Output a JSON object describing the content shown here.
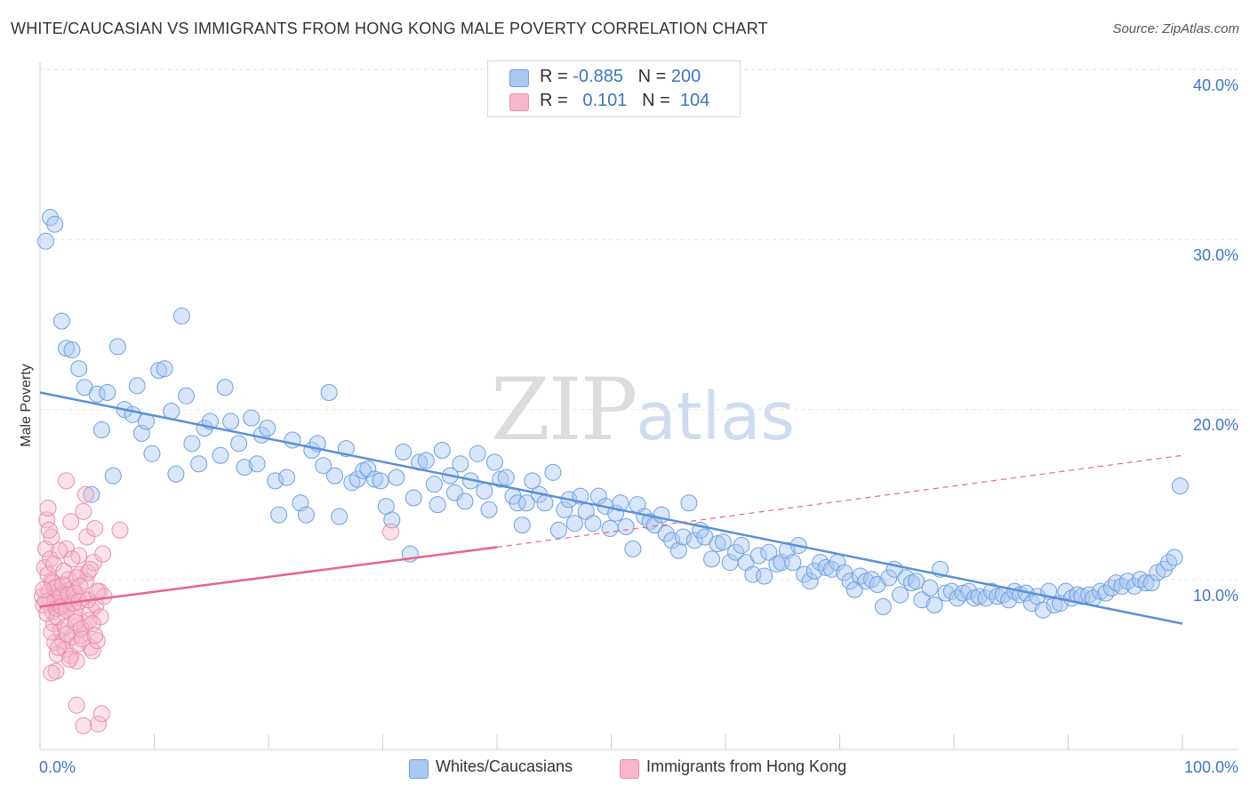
{
  "title": "WHITE/CAUCASIAN VS IMMIGRANTS FROM HONG KONG MALE POVERTY CORRELATION CHART",
  "source": "Source: ZipAtlas.com",
  "watermark": {
    "zip": "ZIP",
    "atlas": "atlas"
  },
  "legend": {
    "rows": [
      {
        "r_label": "R =",
        "r_value": "-0.885",
        "n_label": "N =",
        "n_value": "200",
        "color": "#a9c8f2"
      },
      {
        "r_label": "R =",
        "r_value": "0.101",
        "n_label": "N =",
        "n_value": "104",
        "color": "#f6b7ca"
      }
    ]
  },
  "bottom_legend": [
    {
      "label": "Whites/Caucasians",
      "color": "#a9c8f2"
    },
    {
      "label": "Immigrants from Hong Kong",
      "color": "#f6b7ca"
    }
  ],
  "chart_data": {
    "type": "scatter",
    "title": "WHITE/CAUCASIAN VS IMMIGRANTS FROM HONG KONG MALE POVERTY CORRELATION CHART",
    "ylabel": "Male Poverty",
    "xlabel": "",
    "x_tick_labels": [
      "0.0%",
      "100.0%"
    ],
    "y_tick_labels": [
      "10.0%",
      "20.0%",
      "30.0%",
      "40.0%"
    ],
    "y_ticks": [
      10,
      20,
      30,
      40
    ],
    "xlim": [
      0,
      100
    ],
    "ylim": [
      0,
      41
    ],
    "grid": true,
    "legend_placement": "top-center",
    "series": [
      {
        "name": "Whites/Caucasians",
        "color": "#5b8fd9",
        "fill": "#a9c8f2",
        "trend": {
          "x": [
            0,
            100
          ],
          "y": [
            21.0,
            7.4
          ],
          "dashed_extension": false
        },
        "points": [
          [
            0.5,
            29.9
          ],
          [
            0.9,
            31.3
          ],
          [
            1.3,
            30.9
          ],
          [
            1.9,
            25.2
          ],
          [
            2.3,
            23.6
          ],
          [
            2.8,
            23.5
          ],
          [
            3.4,
            22.4
          ],
          [
            3.9,
            21.3
          ],
          [
            4.5,
            15.0
          ],
          [
            5.0,
            20.9
          ],
          [
            5.4,
            18.8
          ],
          [
            5.9,
            21.0
          ],
          [
            6.4,
            16.1
          ],
          [
            6.8,
            23.7
          ],
          [
            7.4,
            20.0
          ],
          [
            8.1,
            19.7
          ],
          [
            8.5,
            21.4
          ],
          [
            8.9,
            18.6
          ],
          [
            9.3,
            19.3
          ],
          [
            9.8,
            17.4
          ],
          [
            10.4,
            22.3
          ],
          [
            10.9,
            22.4
          ],
          [
            11.5,
            19.9
          ],
          [
            11.9,
            16.2
          ],
          [
            12.4,
            25.5
          ],
          [
            12.8,
            20.8
          ],
          [
            13.3,
            18.0
          ],
          [
            13.9,
            16.8
          ],
          [
            14.4,
            18.9
          ],
          [
            14.9,
            19.3
          ],
          [
            15.8,
            17.3
          ],
          [
            16.2,
            21.3
          ],
          [
            16.7,
            19.3
          ],
          [
            17.4,
            18.0
          ],
          [
            17.9,
            16.6
          ],
          [
            18.5,
            19.5
          ],
          [
            19.0,
            16.8
          ],
          [
            19.4,
            18.5
          ],
          [
            19.9,
            18.9
          ],
          [
            20.6,
            15.8
          ],
          [
            20.9,
            13.8
          ],
          [
            21.6,
            16.0
          ],
          [
            22.1,
            18.2
          ],
          [
            22.8,
            14.5
          ],
          [
            23.3,
            13.8
          ],
          [
            23.8,
            17.6
          ],
          [
            24.3,
            18.0
          ],
          [
            24.8,
            16.7
          ],
          [
            25.3,
            21.0
          ],
          [
            25.8,
            16.1
          ],
          [
            26.2,
            13.7
          ],
          [
            26.8,
            17.7
          ],
          [
            27.3,
            15.7
          ],
          [
            27.8,
            15.9
          ],
          [
            28.3,
            16.4
          ],
          [
            28.7,
            16.5
          ],
          [
            29.3,
            15.9
          ],
          [
            29.8,
            15.8
          ],
          [
            30.3,
            14.3
          ],
          [
            30.8,
            13.5
          ],
          [
            31.2,
            16.0
          ],
          [
            31.8,
            17.5
          ],
          [
            32.4,
            11.5
          ],
          [
            32.7,
            14.8
          ],
          [
            33.2,
            16.9
          ],
          [
            33.8,
            17.0
          ],
          [
            34.5,
            15.6
          ],
          [
            34.8,
            14.4
          ],
          [
            35.2,
            17.6
          ],
          [
            35.9,
            16.1
          ],
          [
            36.3,
            15.1
          ],
          [
            36.8,
            16.8
          ],
          [
            37.2,
            14.6
          ],
          [
            37.7,
            15.8
          ],
          [
            38.3,
            17.4
          ],
          [
            38.9,
            15.2
          ],
          [
            39.3,
            14.1
          ],
          [
            39.8,
            16.9
          ],
          [
            40.3,
            15.9
          ],
          [
            40.8,
            16.0
          ],
          [
            41.4,
            14.9
          ],
          [
            41.8,
            14.5
          ],
          [
            42.2,
            13.2
          ],
          [
            42.6,
            14.5
          ],
          [
            43.1,
            15.8
          ],
          [
            43.7,
            15.0
          ],
          [
            44.2,
            14.5
          ],
          [
            44.9,
            16.3
          ],
          [
            45.4,
            12.9
          ],
          [
            45.9,
            14.1
          ],
          [
            46.3,
            14.7
          ],
          [
            46.8,
            13.3
          ],
          [
            47.3,
            14.9
          ],
          [
            47.8,
            14.0
          ],
          [
            48.4,
            13.3
          ],
          [
            48.9,
            14.9
          ],
          [
            49.5,
            14.3
          ],
          [
            49.9,
            13.0
          ],
          [
            50.4,
            13.9
          ],
          [
            50.8,
            14.5
          ],
          [
            51.3,
            13.1
          ],
          [
            51.9,
            11.8
          ],
          [
            52.3,
            14.4
          ],
          [
            52.9,
            13.7
          ],
          [
            53.4,
            13.4
          ],
          [
            53.8,
            13.2
          ],
          [
            54.4,
            13.8
          ],
          [
            54.8,
            12.7
          ],
          [
            55.3,
            12.3
          ],
          [
            55.9,
            11.7
          ],
          [
            56.3,
            12.5
          ],
          [
            56.8,
            14.5
          ],
          [
            57.3,
            12.3
          ],
          [
            57.8,
            12.9
          ],
          [
            58.2,
            12.5
          ],
          [
            58.8,
            11.2
          ],
          [
            59.3,
            12.1
          ],
          [
            59.8,
            12.2
          ],
          [
            60.4,
            11.0
          ],
          [
            60.9,
            11.6
          ],
          [
            61.4,
            12.0
          ],
          [
            61.8,
            11.0
          ],
          [
            62.4,
            10.3
          ],
          [
            62.9,
            11.4
          ],
          [
            63.4,
            10.2
          ],
          [
            63.8,
            11.6
          ],
          [
            64.5,
            10.9
          ],
          [
            64.9,
            11.0
          ],
          [
            65.4,
            11.7
          ],
          [
            65.9,
            11.0
          ],
          [
            66.4,
            12.0
          ],
          [
            66.9,
            10.3
          ],
          [
            67.4,
            9.9
          ],
          [
            67.8,
            10.5
          ],
          [
            68.3,
            11.0
          ],
          [
            68.8,
            10.7
          ],
          [
            69.3,
            10.6
          ],
          [
            69.8,
            11.0
          ],
          [
            70.4,
            10.4
          ],
          [
            70.9,
            9.9
          ],
          [
            71.3,
            9.4
          ],
          [
            71.8,
            10.2
          ],
          [
            72.3,
            9.9
          ],
          [
            72.8,
            10.0
          ],
          [
            73.3,
            9.7
          ],
          [
            73.8,
            8.4
          ],
          [
            74.3,
            10.1
          ],
          [
            74.8,
            10.6
          ],
          [
            75.3,
            9.1
          ],
          [
            75.8,
            10.1
          ],
          [
            76.3,
            9.8
          ],
          [
            76.7,
            9.9
          ],
          [
            77.2,
            8.8
          ],
          [
            77.9,
            9.5
          ],
          [
            78.3,
            8.5
          ],
          [
            78.8,
            10.6
          ],
          [
            79.3,
            9.2
          ],
          [
            79.8,
            9.3
          ],
          [
            80.3,
            8.9
          ],
          [
            80.8,
            9.2
          ],
          [
            81.3,
            9.3
          ],
          [
            81.8,
            8.9
          ],
          [
            82.2,
            9.0
          ],
          [
            82.8,
            8.9
          ],
          [
            83.3,
            9.3
          ],
          [
            83.8,
            9.0
          ],
          [
            84.3,
            9.1
          ],
          [
            84.8,
            8.8
          ],
          [
            85.3,
            9.3
          ],
          [
            85.8,
            9.1
          ],
          [
            86.3,
            9.2
          ],
          [
            86.8,
            8.6
          ],
          [
            87.3,
            9.0
          ],
          [
            87.8,
            8.2
          ],
          [
            88.3,
            9.3
          ],
          [
            88.8,
            8.5
          ],
          [
            89.3,
            8.6
          ],
          [
            89.8,
            9.3
          ],
          [
            90.3,
            8.9
          ],
          [
            90.8,
            9.1
          ],
          [
            91.2,
            9.0
          ],
          [
            91.8,
            9.1
          ],
          [
            92.2,
            8.9
          ],
          [
            92.8,
            9.3
          ],
          [
            93.3,
            9.2
          ],
          [
            93.8,
            9.5
          ],
          [
            94.2,
            9.8
          ],
          [
            94.7,
            9.6
          ],
          [
            95.2,
            9.9
          ],
          [
            95.8,
            9.6
          ],
          [
            96.3,
            10.0
          ],
          [
            96.8,
            9.8
          ],
          [
            97.3,
            9.8
          ],
          [
            97.8,
            10.4
          ],
          [
            98.4,
            10.6
          ],
          [
            98.8,
            11.0
          ],
          [
            99.3,
            11.3
          ],
          [
            99.8,
            15.5
          ]
        ]
      },
      {
        "name": "Immigrants from Hong Kong",
        "color": "#e8638d",
        "fill": "#f6b7ca",
        "trend": {
          "x": [
            0,
            40
          ],
          "y": [
            8.4,
            11.9
          ],
          "dashed_extension_to": [
            100,
            17.3
          ]
        },
        "points": [
          [
            0.2,
            9.0
          ],
          [
            0.3,
            8.5
          ],
          [
            0.4,
            10.7
          ],
          [
            0.5,
            11.8
          ],
          [
            0.6,
            13.5
          ],
          [
            0.7,
            14.2
          ],
          [
            0.8,
            9.3
          ],
          [
            0.9,
            8.8
          ],
          [
            1.0,
            12.5
          ],
          [
            1.0,
            9.9
          ],
          [
            1.1,
            8.1
          ],
          [
            1.2,
            7.4
          ],
          [
            1.3,
            8.7
          ],
          [
            1.3,
            6.3
          ],
          [
            1.4,
            4.6
          ],
          [
            1.5,
            5.6
          ],
          [
            1.5,
            9.6
          ],
          [
            1.6,
            8.3
          ],
          [
            1.7,
            9.3
          ],
          [
            1.8,
            7.0
          ],
          [
            1.9,
            9.1
          ],
          [
            2.0,
            6.4
          ],
          [
            2.1,
            8.6
          ],
          [
            2.2,
            5.9
          ],
          [
            2.3,
            15.8
          ],
          [
            2.3,
            11.8
          ],
          [
            2.4,
            9.4
          ],
          [
            2.5,
            10.0
          ],
          [
            2.6,
            8.7
          ],
          [
            2.7,
            5.5
          ],
          [
            2.8,
            6.6
          ],
          [
            2.9,
            9.5
          ],
          [
            3.0,
            8.1
          ],
          [
            3.1,
            7.7
          ],
          [
            3.2,
            5.2
          ],
          [
            3.2,
            2.6
          ],
          [
            3.3,
            9.0
          ],
          [
            3.4,
            11.4
          ],
          [
            3.5,
            10.3
          ],
          [
            3.6,
            6.7
          ],
          [
            3.7,
            8.9
          ],
          [
            3.8,
            14.0
          ],
          [
            3.9,
            7.2
          ],
          [
            4.0,
            9.9
          ],
          [
            4.1,
            12.5
          ],
          [
            4.2,
            10.4
          ],
          [
            4.3,
            7.6
          ],
          [
            4.4,
            6.0
          ],
          [
            4.5,
            8.2
          ],
          [
            4.6,
            5.8
          ],
          [
            4.7,
            11.0
          ],
          [
            4.8,
            13.0
          ],
          [
            4.9,
            8.5
          ],
          [
            5.0,
            6.4
          ],
          [
            5.1,
            1.5
          ],
          [
            5.2,
            9.3
          ],
          [
            5.3,
            7.8
          ],
          [
            5.4,
            2.1
          ],
          [
            5.5,
            11.5
          ],
          [
            5.6,
            9.0
          ],
          [
            0.5,
            8.7
          ],
          [
            0.6,
            8.0
          ],
          [
            0.7,
            10.3
          ],
          [
            0.8,
            12.9
          ],
          [
            0.9,
            11.2
          ],
          [
            1.0,
            6.9
          ],
          [
            1.1,
            9.8
          ],
          [
            1.2,
            10.9
          ],
          [
            1.3,
            9.5
          ],
          [
            1.4,
            8.3
          ],
          [
            1.5,
            7.8
          ],
          [
            1.6,
            6.0
          ],
          [
            1.7,
            11.7
          ],
          [
            1.8,
            9.0
          ],
          [
            1.9,
            8.4
          ],
          [
            2.0,
            9.7
          ],
          [
            2.1,
            10.5
          ],
          [
            2.2,
            7.2
          ],
          [
            2.3,
            8.2
          ],
          [
            2.4,
            6.8
          ],
          [
            2.5,
            9.1
          ],
          [
            2.6,
            5.3
          ],
          [
            2.7,
            13.4
          ],
          [
            2.8,
            11.2
          ],
          [
            2.9,
            8.6
          ],
          [
            3.0,
            9.2
          ],
          [
            3.1,
            7.5
          ],
          [
            3.2,
            10.1
          ],
          [
            3.3,
            6.2
          ],
          [
            3.4,
            8.7
          ],
          [
            3.5,
            9.6
          ],
          [
            3.6,
            7.1
          ],
          [
            3.7,
            6.5
          ],
          [
            3.8,
            1.4
          ],
          [
            4.0,
            15.0
          ],
          [
            4.2,
            8.8
          ],
          [
            4.4,
            10.6
          ],
          [
            4.6,
            7.4
          ],
          [
            4.8,
            6.7
          ],
          [
            5.0,
            9.3
          ],
          [
            7.0,
            12.9
          ],
          [
            30.7,
            12.8
          ],
          [
            0.3,
            9.4
          ],
          [
            1.0,
            4.5
          ]
        ]
      }
    ]
  }
}
